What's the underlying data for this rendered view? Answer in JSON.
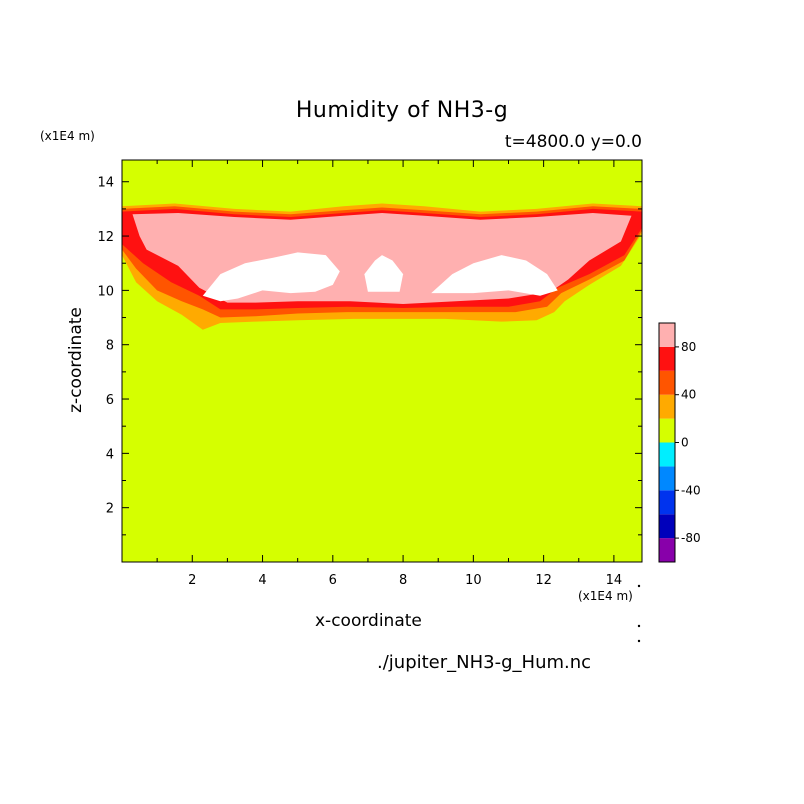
{
  "figure": {
    "title": "Humidity of NH3-g",
    "subtitle": "t=4800.0 y=0.0",
    "footer": "./jupiter_NH3-g_Hum.nc"
  },
  "chart_data": {
    "type": "heatmap",
    "title": "Humidity of NH3-g",
    "subtitle": "t=4800.0 y=0.0",
    "xlabel": "x-coordinate",
    "ylabel": "z-coordinate",
    "x_unit": "(x1E4 m)",
    "y_unit": "(x1E4 m)",
    "xlim": [
      0,
      14.8
    ],
    "ylim": [
      0,
      14.8
    ],
    "x_ticks": [
      "2",
      "4",
      "6",
      "8",
      "10",
      "12",
      "14"
    ],
    "y_ticks": [
      "2",
      "4",
      "6",
      "8",
      "10",
      "12",
      "14"
    ],
    "background_value_range": [
      0,
      20
    ],
    "colorbar": {
      "labels": [
        "80",
        "40",
        "0",
        "-40",
        "-80"
      ],
      "levels": [
        -100,
        -80,
        -60,
        -40,
        -20,
        0,
        20,
        40,
        60,
        80,
        100
      ],
      "colors": [
        "#8800aa",
        "#0000bb",
        "#0033ee",
        "#0088ff",
        "#00eeff",
        "#d5ff00",
        "#ffaa00",
        "#ff5500",
        "#ff1111",
        "#ffb0b0"
      ]
    },
    "layers": [
      {
        "range": [
          20,
          40
        ],
        "color": "#ffaa00",
        "polygon": [
          [
            0,
            13.1
          ],
          [
            1.5,
            13.2
          ],
          [
            3.2,
            13.0
          ],
          [
            4.8,
            12.9
          ],
          [
            6.3,
            13.1
          ],
          [
            7.4,
            13.2
          ],
          [
            8.6,
            13.1
          ],
          [
            10.2,
            12.9
          ],
          [
            11.8,
            13.0
          ],
          [
            13.4,
            13.2
          ],
          [
            14.8,
            13.1
          ],
          [
            14.8,
            12.1
          ],
          [
            14.2,
            10.9
          ],
          [
            13.3,
            10.2
          ],
          [
            12.6,
            9.6
          ],
          [
            12.3,
            9.2
          ],
          [
            11.8,
            8.9
          ],
          [
            10.8,
            8.85
          ],
          [
            9.2,
            8.95
          ],
          [
            8.0,
            8.95
          ],
          [
            6.6,
            8.95
          ],
          [
            5.0,
            8.9
          ],
          [
            3.8,
            8.85
          ],
          [
            2.8,
            8.8
          ],
          [
            2.3,
            8.55
          ],
          [
            1.7,
            9.1
          ],
          [
            1.0,
            9.6
          ],
          [
            0.4,
            10.3
          ],
          [
            0,
            11.3
          ]
        ]
      },
      {
        "range": [
          40,
          60
        ],
        "color": "#ff5500",
        "polygon": [
          [
            0,
            13.0
          ],
          [
            1.5,
            13.1
          ],
          [
            3.2,
            12.9
          ],
          [
            4.8,
            12.8
          ],
          [
            6.3,
            12.95
          ],
          [
            7.4,
            13.05
          ],
          [
            8.6,
            12.95
          ],
          [
            10.2,
            12.8
          ],
          [
            11.8,
            12.9
          ],
          [
            13.4,
            13.1
          ],
          [
            14.8,
            13.0
          ],
          [
            14.8,
            12.2
          ],
          [
            14.3,
            11.1
          ],
          [
            13.3,
            10.4
          ],
          [
            12.5,
            9.9
          ],
          [
            12.1,
            9.4
          ],
          [
            11.2,
            9.2
          ],
          [
            9.6,
            9.2
          ],
          [
            8.0,
            9.2
          ],
          [
            6.4,
            9.2
          ],
          [
            5.0,
            9.15
          ],
          [
            3.8,
            9.05
          ],
          [
            2.8,
            9.0
          ],
          [
            2.3,
            9.3
          ],
          [
            1.7,
            9.6
          ],
          [
            1.0,
            10.0
          ],
          [
            0.4,
            10.8
          ],
          [
            0,
            11.5
          ]
        ]
      },
      {
        "range": [
          60,
          80
        ],
        "color": "#ff1111",
        "polygon": [
          [
            0,
            12.9
          ],
          [
            1.5,
            13.0
          ],
          [
            3.2,
            12.8
          ],
          [
            4.8,
            12.7
          ],
          [
            6.3,
            12.85
          ],
          [
            7.4,
            12.95
          ],
          [
            8.6,
            12.85
          ],
          [
            10.2,
            12.7
          ],
          [
            11.8,
            12.8
          ],
          [
            13.4,
            13.0
          ],
          [
            14.8,
            12.9
          ],
          [
            14.8,
            12.3
          ],
          [
            14.3,
            11.3
          ],
          [
            13.3,
            10.6
          ],
          [
            12.4,
            10.1
          ],
          [
            11.9,
            9.6
          ],
          [
            11.0,
            9.4
          ],
          [
            9.6,
            9.4
          ],
          [
            8.0,
            9.35
          ],
          [
            6.4,
            9.4
          ],
          [
            5.0,
            9.35
          ],
          [
            3.8,
            9.3
          ],
          [
            2.8,
            9.3
          ],
          [
            2.2,
            9.8
          ],
          [
            1.4,
            10.3
          ],
          [
            0.6,
            11.0
          ],
          [
            0,
            11.7
          ]
        ]
      },
      {
        "range": [
          80,
          100
        ],
        "color": "#ffb0b0",
        "polygon": [
          [
            0.3,
            12.8
          ],
          [
            1.6,
            12.85
          ],
          [
            3.2,
            12.7
          ],
          [
            4.8,
            12.6
          ],
          [
            6.3,
            12.75
          ],
          [
            7.4,
            12.85
          ],
          [
            8.6,
            12.75
          ],
          [
            10.2,
            12.6
          ],
          [
            11.8,
            12.7
          ],
          [
            13.4,
            12.85
          ],
          [
            14.5,
            12.75
          ],
          [
            14.2,
            11.8
          ],
          [
            13.3,
            11.1
          ],
          [
            12.7,
            10.4
          ],
          [
            12.2,
            9.95
          ],
          [
            11.0,
            9.7
          ],
          [
            9.5,
            9.6
          ],
          [
            8.0,
            9.5
          ],
          [
            6.5,
            9.6
          ],
          [
            5.0,
            9.6
          ],
          [
            3.8,
            9.55
          ],
          [
            3.0,
            9.55
          ],
          [
            2.2,
            10.1
          ],
          [
            1.6,
            10.9
          ],
          [
            0.7,
            11.5
          ],
          [
            0.5,
            12.0
          ]
        ]
      }
    ],
    "white_regions": [
      [
        [
          2.3,
          9.8
        ],
        [
          2.8,
          10.6
        ],
        [
          3.5,
          11.0
        ],
        [
          4.3,
          11.2
        ],
        [
          5.0,
          11.4
        ],
        [
          5.8,
          11.3
        ],
        [
          6.2,
          10.7
        ],
        [
          6.0,
          10.2
        ],
        [
          5.5,
          9.95
        ],
        [
          4.8,
          9.9
        ],
        [
          4.0,
          10.0
        ],
        [
          3.3,
          9.7
        ],
        [
          2.8,
          9.6
        ]
      ],
      [
        [
          7.0,
          9.95
        ],
        [
          6.9,
          10.6
        ],
        [
          7.2,
          11.1
        ],
        [
          7.4,
          11.3
        ],
        [
          7.7,
          11.1
        ],
        [
          8.0,
          10.6
        ],
        [
          7.9,
          9.95
        ]
      ],
      [
        [
          8.8,
          9.9
        ],
        [
          9.4,
          10.6
        ],
        [
          10.0,
          11.0
        ],
        [
          10.8,
          11.3
        ],
        [
          11.5,
          11.1
        ],
        [
          12.1,
          10.6
        ],
        [
          12.4,
          10.0
        ],
        [
          11.9,
          9.8
        ],
        [
          11.0,
          10.0
        ],
        [
          10.0,
          9.9
        ]
      ]
    ]
  }
}
